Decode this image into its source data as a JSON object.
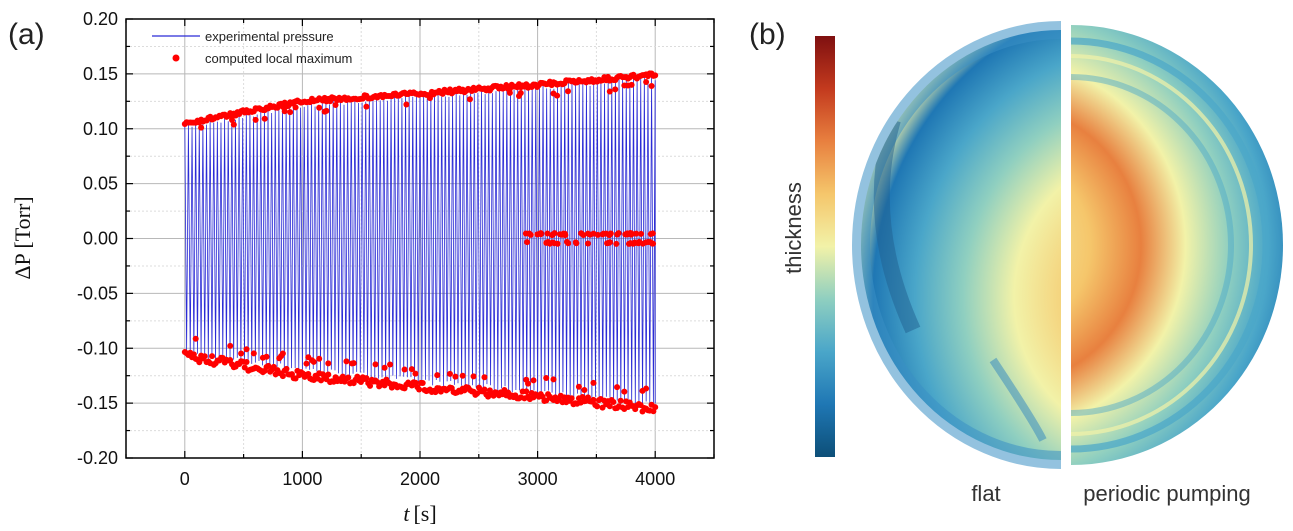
{
  "panels": {
    "a": "(a)",
    "b": "(b)"
  },
  "chart_data": [
    {
      "type": "line",
      "xlabel_var": "t",
      "xlabel_unit": "[s]",
      "ylabel": "ΔP [Torr]",
      "xlim": [
        -500,
        4500
      ],
      "ylim": [
        -0.2,
        0.2
      ],
      "xticks": [
        "0",
        "1000",
        "2000",
        "3000",
        "4000"
      ],
      "xtick_values": [
        0,
        1000,
        2000,
        3000,
        4000
      ],
      "yticks": [
        "0.20",
        "0.15",
        "0.10",
        "0.05",
        "0.00",
        "-0.05",
        "-0.10",
        "-0.15",
        "-0.20"
      ],
      "ytick_values": [
        0.2,
        0.15,
        0.1,
        0.05,
        0.0,
        -0.05,
        -0.1,
        -0.15,
        -0.2
      ],
      "grid": true,
      "legend_position": "top-left",
      "series": [
        {
          "name": "experimental pressure",
          "kind": "oscillating-line",
          "color": "#2b2bd6",
          "x_range": [
            0,
            4000
          ],
          "upper_envelope": {
            "x": [
              0,
              1000,
              2000,
              3000,
              4000
            ],
            "y": [
              0.105,
              0.125,
              0.133,
              0.141,
              0.15
            ]
          },
          "lower_envelope": {
            "x": [
              0,
              1000,
              2000,
              3000,
              4000
            ],
            "y": [
              -0.108,
              -0.122,
              -0.133,
              -0.143,
              -0.155
            ]
          },
          "cycles": 130
        },
        {
          "name": "computed local maximum",
          "kind": "scatter",
          "color": "#ff0000",
          "upper_band": {
            "x": [
              0,
              1000,
              2000,
              3000,
              4000
            ],
            "y": [
              0.107,
              0.127,
              0.134,
              0.142,
              0.151
            ]
          },
          "lower_band": {
            "x": [
              0,
              1000,
              2000,
              3000,
              4000
            ],
            "y": [
              -0.103,
              -0.121,
              -0.131,
              -0.14,
              -0.151
            ]
          },
          "middle_cluster": {
            "x_range": [
              2900,
              4000
            ],
            "y": [
              -0.005,
              0.005
            ]
          }
        }
      ]
    },
    {
      "type": "heatmap",
      "colorbar_label": "thickness",
      "colormap": [
        "#0d4f78",
        "#1f77b4",
        "#4aa6c9",
        "#8fcfc0",
        "#f2f2a8",
        "#f5c66b",
        "#e8803f",
        "#c33a1e",
        "#7f1010"
      ],
      "halves": [
        {
          "label": "flat"
        },
        {
          "label": "periodic pumping"
        }
      ]
    }
  ]
}
